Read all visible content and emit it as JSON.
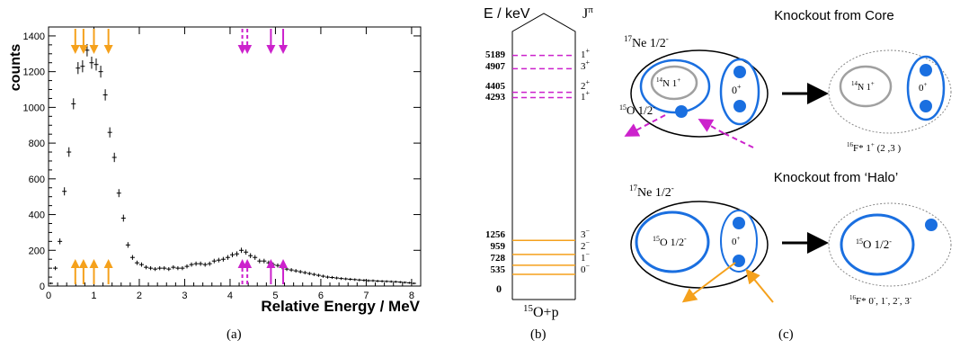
{
  "panels": {
    "a": {
      "caption": "(a)"
    },
    "b": {
      "caption": "(b)"
    },
    "c": {
      "caption": "(c)"
    }
  },
  "chart_data": {
    "type": "scatter",
    "title": "",
    "xlabel": "Relative Energy / MeV",
    "ylabel": "counts",
    "xlim": [
      0,
      8.2
    ],
    "ylim": [
      0,
      1450
    ],
    "xticks": [
      0,
      1,
      2,
      3,
      4,
      5,
      6,
      7,
      8
    ],
    "yticks": [
      0,
      200,
      400,
      600,
      800,
      1000,
      1200,
      1400
    ],
    "x": [
      0.05,
      0.15,
      0.25,
      0.35,
      0.45,
      0.55,
      0.65,
      0.75,
      0.85,
      0.95,
      1.05,
      1.15,
      1.25,
      1.35,
      1.45,
      1.55,
      1.65,
      1.75,
      1.85,
      1.95,
      2.05,
      2.15,
      2.25,
      2.35,
      2.45,
      2.55,
      2.65,
      2.75,
      2.85,
      2.95,
      3.05,
      3.15,
      3.25,
      3.35,
      3.45,
      3.55,
      3.65,
      3.75,
      3.85,
      3.95,
      4.05,
      4.15,
      4.25,
      4.35,
      4.45,
      4.55,
      4.65,
      4.75,
      4.85,
      4.95,
      5.05,
      5.15,
      5.25,
      5.35,
      5.45,
      5.55,
      5.65,
      5.75,
      5.85,
      5.95,
      6.05,
      6.15,
      6.25,
      6.35,
      6.45,
      6.55,
      6.65,
      6.75,
      6.85,
      6.95,
      7.05,
      7.15,
      7.25,
      7.35,
      7.45,
      7.55,
      7.65,
      7.75,
      7.85,
      7.95,
      8.05
    ],
    "y": [
      15,
      100,
      250,
      530,
      750,
      1020,
      1220,
      1230,
      1320,
      1250,
      1240,
      1200,
      1070,
      860,
      720,
      520,
      380,
      230,
      160,
      130,
      120,
      105,
      100,
      95,
      100,
      100,
      95,
      105,
      100,
      100,
      110,
      120,
      125,
      125,
      120,
      125,
      140,
      145,
      150,
      160,
      175,
      180,
      200,
      190,
      170,
      160,
      140,
      140,
      130,
      120,
      115,
      105,
      95,
      90,
      85,
      80,
      75,
      70,
      65,
      60,
      55,
      50,
      48,
      45,
      42,
      40,
      38,
      36,
      34,
      32,
      30,
      30,
      28,
      27,
      26,
      25,
      24,
      22,
      20,
      18,
      15
    ],
    "arrows_orange_mev": [
      0.59,
      0.77,
      1.0,
      1.32
    ],
    "arrows_magenta_dashed_mev": [
      4.27,
      4.38
    ],
    "arrows_magenta_solid_mev": [
      4.9,
      5.17
    ],
    "colors": {
      "orange": "#f5a11c",
      "magenta": "#cc22cc",
      "points": "#000000"
    }
  },
  "level_scheme": {
    "title_left": "E / keV",
    "title_right": "J",
    "title_right_sup": "π",
    "bottom_label_pre": "15",
    "bottom_label": "O+p",
    "zero_label": "0",
    "levels": [
      {
        "energy": "5189",
        "spin": "1",
        "parity": "+",
        "kev": 5189,
        "color": "magenta",
        "style": "dashed"
      },
      {
        "energy": "4907",
        "spin": "3",
        "parity": "+",
        "kev": 4907,
        "color": "magenta",
        "style": "dashed"
      },
      {
        "energy": "4405",
        "spin": "2",
        "parity": "+",
        "kev": 4405,
        "color": "magenta",
        "style": "dashed"
      },
      {
        "energy": "4293",
        "spin": "1",
        "parity": "+",
        "kev": 4293,
        "color": "magenta",
        "style": "dashed"
      },
      {
        "energy": "1256",
        "spin": "3",
        "parity": "−",
        "kev": 1256,
        "color": "orange",
        "style": "solid"
      },
      {
        "energy": "959",
        "spin": "2",
        "parity": "−",
        "kev": 959,
        "color": "orange",
        "style": "solid"
      },
      {
        "energy": "728",
        "spin": "1",
        "parity": "−",
        "kev": 728,
        "color": "orange",
        "style": "solid"
      },
      {
        "energy": "535",
        "spin": "0",
        "parity": "−",
        "kev": 535,
        "color": "orange",
        "style": "solid"
      }
    ]
  },
  "knockout": {
    "core_title": "Knockout from Core",
    "halo_title": "Knockout from ‘Halo’",
    "ne_sup": "17",
    "ne_label": "Ne 1/2",
    "ne_label_sup": "-",
    "n14_sup": "14",
    "n14_label": "N 1",
    "n14_label_sup": "+",
    "o15_sup": "15",
    "o15_label": "O 1/2",
    "o15_label_sup": "-",
    "pair_core_label": "0",
    "pair_core_sup": "+",
    "pair_halo_label": "0",
    "pair_halo_sup": "+",
    "f16_sup": "16",
    "f16_core_label": "F* 1",
    "f16_core_sup": "+",
    "f16_core_extra": " (2 ,3 )",
    "f16_halo_label": "F* 0",
    "f16_halo_rest": ", 1",
    "f16_halo_rest2": ", 2",
    "f16_halo_rest3": ", 3",
    "minus": "-",
    "colors": {
      "blue": "#1a6fe0",
      "grey": "#a0a0a0",
      "magenta": "#cc22cc",
      "orange": "#f5a11c"
    }
  }
}
